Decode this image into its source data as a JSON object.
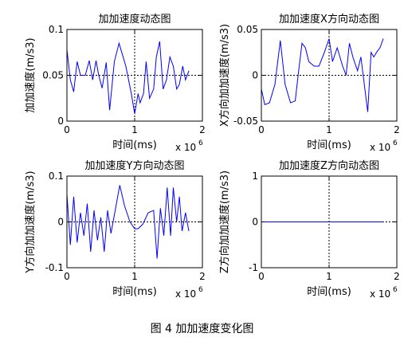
{
  "figure": {
    "caption": "图 4  加加速度变化图"
  },
  "colors": {
    "series": "#0000ff",
    "axes": "#000000",
    "crosshair": "#000000"
  },
  "chart_data": [
    {
      "type": "line",
      "title": "加加速度动态图",
      "xlabel": "时间(ms)",
      "ylabel": "加加速度(m/s3)",
      "x_exponent_label": "x 10",
      "x_exponent": "6",
      "xlim": [
        0,
        2
      ],
      "ylim": [
        0,
        0.1
      ],
      "xticks": [
        0,
        1,
        2
      ],
      "xtick_labels": [
        "0",
        "1",
        "2"
      ],
      "yticks": [
        0,
        0.05,
        0.1
      ],
      "ytick_labels": [
        "0",
        "0.05",
        "0.1"
      ],
      "crosshair": {
        "x": 1,
        "y": 0.05
      },
      "series": [
        {
          "x": [
            0,
            0.05,
            0.1,
            0.15,
            0.2,
            0.27,
            0.33,
            0.38,
            0.43,
            0.47,
            0.52,
            0.58,
            0.63,
            0.7,
            0.77,
            0.87,
            0.95,
            1.0,
            1.05,
            1.08,
            1.13,
            1.17,
            1.22,
            1.28,
            1.32,
            1.37,
            1.42,
            1.47,
            1.52,
            1.57,
            1.62,
            1.66,
            1.71,
            1.75,
            1.8
          ],
          "y": [
            0.078,
            0.045,
            0.032,
            0.065,
            0.05,
            0.05,
            0.066,
            0.045,
            0.066,
            0.05,
            0.036,
            0.064,
            0.012,
            0.065,
            0.085,
            0.06,
            0.03,
            0.008,
            0.03,
            0.02,
            0.03,
            0.065,
            0.025,
            0.035,
            0.07,
            0.087,
            0.035,
            0.045,
            0.07,
            0.06,
            0.035,
            0.04,
            0.06,
            0.045,
            0.055
          ]
        }
      ]
    },
    {
      "type": "line",
      "title": "加加速度X方向动态图",
      "xlabel": "时间(ms)",
      "ylabel": "X方向加加速度(m/s3)",
      "x_exponent_label": "x 10",
      "x_exponent": "6",
      "xlim": [
        0,
        2
      ],
      "ylim": [
        -0.05,
        0.05
      ],
      "xticks": [
        0,
        1,
        2
      ],
      "xtick_labels": [
        "0",
        "1",
        "2"
      ],
      "yticks": [
        -0.05,
        0,
        0.05
      ],
      "ytick_labels": [
        "-0.05",
        "0",
        "0.05"
      ],
      "crosshair": {
        "x": 1,
        "y": 0
      },
      "series": [
        {
          "x": [
            0,
            0.05,
            0.12,
            0.2,
            0.28,
            0.35,
            0.43,
            0.5,
            0.55,
            0.6,
            0.65,
            0.7,
            0.78,
            0.85,
            0.93,
            1.0,
            1.05,
            1.12,
            1.2,
            1.25,
            1.3,
            1.35,
            1.42,
            1.47,
            1.52,
            1.57,
            1.62,
            1.66,
            1.7,
            1.75,
            1.8
          ],
          "y": [
            -0.015,
            -0.032,
            -0.03,
            -0.01,
            0.038,
            -0.01,
            -0.03,
            -0.028,
            0.005,
            0.035,
            0.03,
            0.015,
            0.01,
            0.01,
            0.025,
            0.04,
            0.015,
            0.03,
            0.01,
            0.0,
            0.035,
            0.02,
            0.005,
            0.02,
            -0.01,
            -0.04,
            0.025,
            0.02,
            0.025,
            0.03,
            0.04
          ]
        }
      ]
    },
    {
      "type": "line",
      "title": "加加速度Y方向动态图",
      "xlabel": "时间(ms)",
      "ylabel": "Y方向加加速度(m/s3)",
      "x_exponent_label": "x 10",
      "x_exponent": "6",
      "xlim": [
        0,
        2
      ],
      "ylim": [
        -0.1,
        0.1
      ],
      "xticks": [
        0,
        1,
        2
      ],
      "xtick_labels": [
        "0",
        "1",
        "2"
      ],
      "yticks": [
        -0.1,
        0,
        0.1
      ],
      "ytick_labels": [
        "-0.1",
        "0",
        "0.1"
      ],
      "crosshair": {
        "x": 1,
        "y": 0
      },
      "series": [
        {
          "x": [
            0,
            0.05,
            0.1,
            0.15,
            0.2,
            0.25,
            0.3,
            0.35,
            0.4,
            0.45,
            0.5,
            0.55,
            0.6,
            0.65,
            0.7,
            0.78,
            0.85,
            0.93,
            1.0,
            1.05,
            1.12,
            1.2,
            1.28,
            1.33,
            1.38,
            1.43,
            1.48,
            1.53,
            1.57,
            1.62,
            1.66,
            1.7,
            1.75,
            1.8
          ],
          "y": [
            0.06,
            -0.05,
            0.055,
            -0.045,
            0.02,
            -0.03,
            0.04,
            -0.065,
            0.025,
            -0.04,
            0.01,
            -0.065,
            0.025,
            -0.025,
            0.015,
            0.08,
            0.035,
            0.0,
            -0.015,
            -0.015,
            -0.005,
            0.02,
            0.025,
            -0.08,
            0.03,
            -0.03,
            0.075,
            -0.03,
            0.075,
            0.0,
            0.055,
            -0.02,
            0.02,
            -0.02
          ]
        }
      ]
    },
    {
      "type": "line",
      "title": "加加速度Z方向动态图",
      "xlabel": "时间(ms)",
      "ylabel": "Z方向加加速度(m/s3)",
      "x_exponent_label": "x 10",
      "x_exponent": "6",
      "xlim": [
        0,
        2
      ],
      "ylim": [
        -1,
        1
      ],
      "xticks": [
        0,
        1,
        2
      ],
      "xtick_labels": [
        "0",
        "1",
        "2"
      ],
      "yticks": [
        -1,
        0,
        1
      ],
      "ytick_labels": [
        "-1",
        "0",
        "1"
      ],
      "crosshair": {
        "x": 1,
        "y": 0
      },
      "series": [
        {
          "x": [
            0,
            1.8
          ],
          "y": [
            0,
            0
          ]
        }
      ]
    }
  ]
}
